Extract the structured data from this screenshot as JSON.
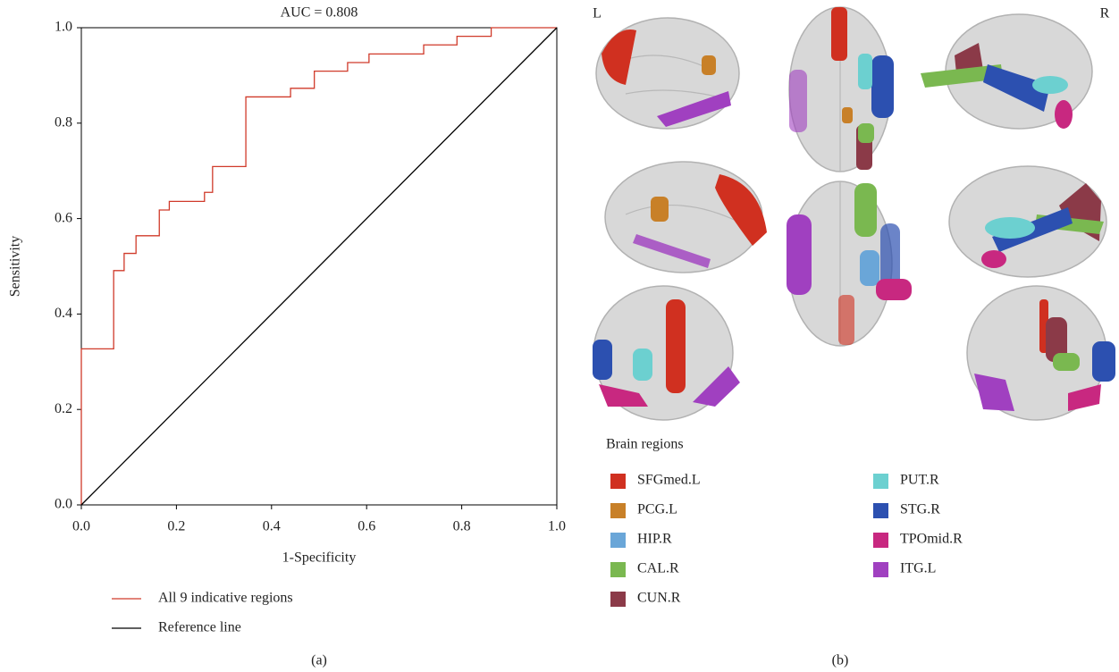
{
  "chart_data": {
    "type": "line",
    "title": "AUC = 0.808",
    "xlabel": "1-Specificity",
    "ylabel": "Sensitivity",
    "xlim": [
      0,
      1
    ],
    "ylim": [
      0,
      1
    ],
    "xticks": [
      {
        "value": 0,
        "label": "0.0"
      },
      {
        "value": 0.2,
        "label": "0.2"
      },
      {
        "value": 0.4,
        "label": "0.4"
      },
      {
        "value": 0.6,
        "label": "0.6"
      },
      {
        "value": 0.8,
        "label": "0.8"
      },
      {
        "value": 1,
        "label": "1.0"
      }
    ],
    "yticks": [
      {
        "value": 0,
        "label": "0.0"
      },
      {
        "value": 0.2,
        "label": "0.2"
      },
      {
        "value": 0.4,
        "label": "0.4"
      },
      {
        "value": 0.6,
        "label": "0.6"
      },
      {
        "value": 0.8,
        "label": "0.8"
      },
      {
        "value": 1,
        "label": "1.0"
      }
    ],
    "grid": false,
    "legend": "below",
    "series": [
      {
        "name": "All 9 indicative regions",
        "color": "#d03a2a",
        "x": [
          0,
          0,
          0.068,
          0.068,
          0.09,
          0.09,
          0.115,
          0.115,
          0.164,
          0.164,
          0.185,
          0.185,
          0.259,
          0.259,
          0.276,
          0.276,
          0.346,
          0.346,
          0.44,
          0.44,
          0.49,
          0.49,
          0.56,
          0.56,
          0.605,
          0.605,
          0.72,
          0.72,
          0.79,
          0.79,
          0.862,
          0.862,
          1
        ],
        "values": [
          0,
          0.327,
          0.327,
          0.491,
          0.491,
          0.527,
          0.527,
          0.564,
          0.564,
          0.618,
          0.618,
          0.636,
          0.636,
          0.655,
          0.655,
          0.709,
          0.709,
          0.855,
          0.855,
          0.873,
          0.873,
          0.909,
          0.909,
          0.927,
          0.927,
          0.945,
          0.945,
          0.964,
          0.964,
          0.982,
          0.982,
          1,
          1
        ]
      },
      {
        "name": "Reference line",
        "color": "#000000",
        "x": [
          0,
          1
        ],
        "values": [
          0,
          1
        ]
      }
    ]
  },
  "figure": {
    "panel_labels": [
      "(a)",
      "(b)"
    ],
    "side_labels": [
      "L",
      "R"
    ],
    "legend_title": "Brain regions",
    "regions": [
      {
        "name": "SFGmed.L",
        "color": "#d03020"
      },
      {
        "name": "PCG.L",
        "color": "#c88028"
      },
      {
        "name": "HIP.R",
        "color": "#6aa6d8"
      },
      {
        "name": "CAL.R",
        "color": "#7ab850"
      },
      {
        "name": "CUN.R",
        "color": "#8b3a48"
      },
      {
        "name": "PUT.R",
        "color": "#6cd0d0"
      },
      {
        "name": "STG.R",
        "color": "#2c50b0"
      },
      {
        "name": "TPOmid.R",
        "color": "#c82880"
      },
      {
        "name": "ITG.L",
        "color": "#a040c0"
      }
    ]
  }
}
